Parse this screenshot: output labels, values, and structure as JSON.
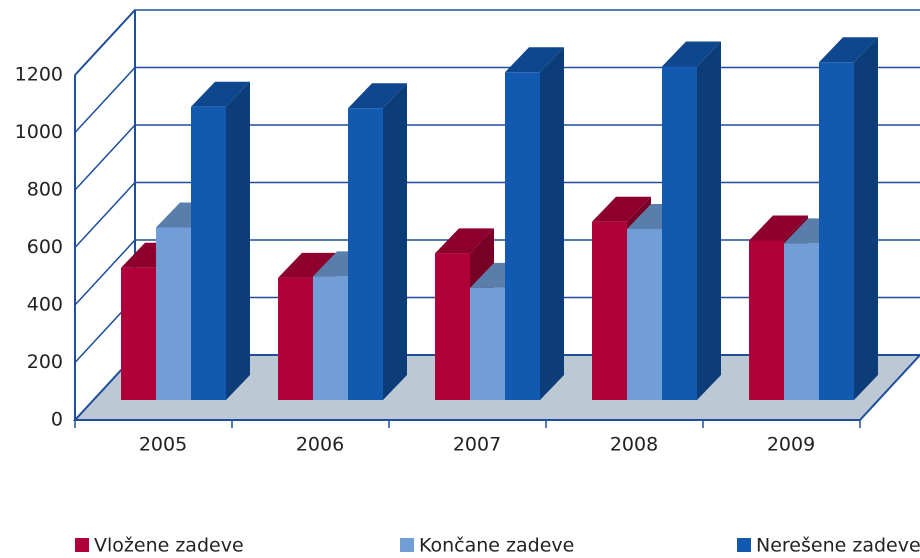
{
  "chart_data": {
    "type": "bar3d",
    "categories": [
      "2005",
      "2006",
      "2007",
      "2008",
      "2009"
    ],
    "series": [
      {
        "name": "Vložene zadeve",
        "color": "#b0003a",
        "values": [
          460,
          425,
          510,
          620,
          555
        ]
      },
      {
        "name": "Končane zadeve",
        "color": "#719ed6",
        "values": [
          600,
          430,
          390,
          595,
          545
        ]
      },
      {
        "name": "Nerešene zadeve",
        "color": "#1259b0",
        "values": [
          1020,
          1015,
          1140,
          1160,
          1175
        ]
      }
    ],
    "ylim": [
      0,
      1200
    ],
    "yticks": [
      0,
      200,
      400,
      600,
      800,
      1000,
      1200
    ],
    "grid": true,
    "legend": "bottom"
  }
}
